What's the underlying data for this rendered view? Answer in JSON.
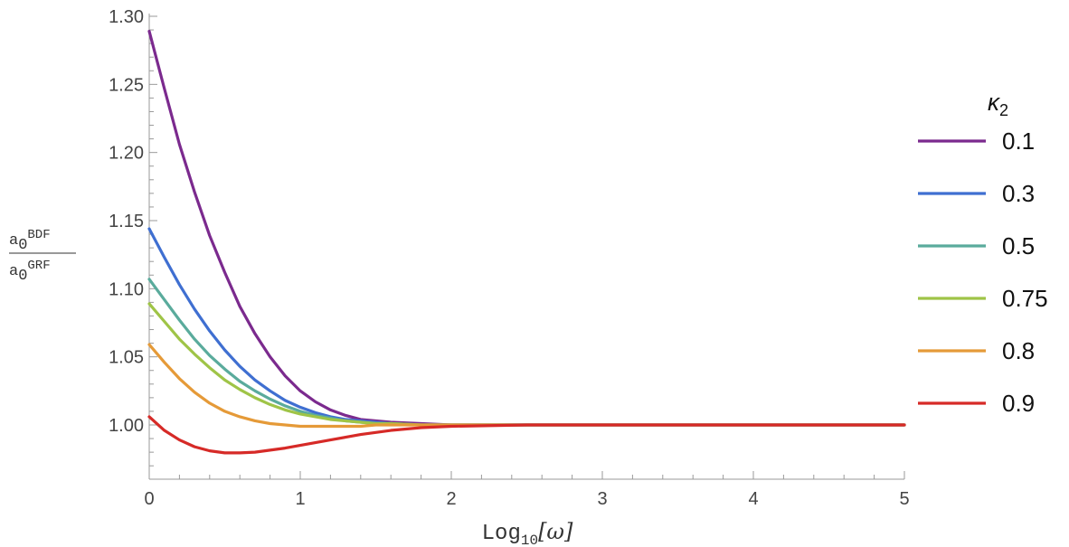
{
  "chart_data": {
    "type": "line",
    "xlabel": {
      "base": "Log",
      "sub": "10",
      "rest": "[ω]"
    },
    "ylabel": {
      "numerator": {
        "base": "a",
        "sub": "0",
        "sup": "BDF"
      },
      "denominator": {
        "base": "a",
        "sub": "0",
        "sup": "GRF"
      }
    },
    "xlim": [
      0,
      5
    ],
    "ylim": [
      0.97,
      1.3
    ],
    "x_ticks": [
      0,
      1,
      2,
      3,
      4,
      5
    ],
    "x_tick_labels": [
      "0",
      "1",
      "2",
      "3",
      "4",
      "5"
    ],
    "y_ticks": [
      1.0,
      1.05,
      1.1,
      1.15,
      1.2,
      1.25,
      1.3
    ],
    "y_tick_labels": [
      "1.00",
      "1.05",
      "1.10",
      "1.15",
      "1.20",
      "1.25",
      "1.30"
    ],
    "grid": false,
    "legend": {
      "title": {
        "base": "κ",
        "sub": "2"
      },
      "placement": "right"
    },
    "x": [
      0,
      0.1,
      0.2,
      0.3,
      0.4,
      0.5,
      0.6,
      0.7,
      0.8,
      0.9,
      1.0,
      1.1,
      1.2,
      1.3,
      1.4,
      1.5,
      1.6,
      1.8,
      2.0,
      2.5,
      3.0,
      3.5,
      4.0,
      4.5,
      5.0
    ],
    "series": [
      {
        "name": "0.1",
        "color": "#7b2a8e",
        "values": [
          1.289,
          1.247,
          1.206,
          1.171,
          1.139,
          1.112,
          1.087,
          1.067,
          1.05,
          1.036,
          1.025,
          1.017,
          1.011,
          1.007,
          1.004,
          1.003,
          1.002,
          1.001,
          1.0,
          1.0,
          1.0,
          1.0,
          1.0,
          1.0,
          1.0
        ]
      },
      {
        "name": "0.3",
        "color": "#3f6fd1",
        "values": [
          1.144,
          1.123,
          1.103,
          1.085,
          1.069,
          1.055,
          1.043,
          1.033,
          1.025,
          1.018,
          1.013,
          1.009,
          1.006,
          1.004,
          1.003,
          1.002,
          1.001,
          1.0,
          1.0,
          1.0,
          1.0,
          1.0,
          1.0,
          1.0,
          1.0
        ]
      },
      {
        "name": "0.5",
        "color": "#5aab9c",
        "values": [
          1.107,
          1.092,
          1.077,
          1.063,
          1.051,
          1.041,
          1.032,
          1.025,
          1.019,
          1.014,
          1.01,
          1.007,
          1.005,
          1.003,
          1.002,
          1.001,
          1.001,
          1.0,
          1.0,
          1.0,
          1.0,
          1.0,
          1.0,
          1.0,
          1.0
        ]
      },
      {
        "name": "0.75",
        "color": "#9fc447",
        "values": [
          1.089,
          1.076,
          1.063,
          1.052,
          1.042,
          1.033,
          1.026,
          1.02,
          1.015,
          1.011,
          1.008,
          1.006,
          1.004,
          1.003,
          1.002,
          1.001,
          1.001,
          1.0,
          1.0,
          1.0,
          1.0,
          1.0,
          1.0,
          1.0,
          1.0
        ]
      },
      {
        "name": "0.8",
        "color": "#e59a38",
        "values": [
          1.059,
          1.046,
          1.034,
          1.024,
          1.016,
          1.01,
          1.006,
          1.003,
          1.001,
          1.0,
          0.999,
          0.999,
          0.999,
          0.999,
          0.999,
          1.0,
          1.0,
          1.0,
          1.0,
          1.0,
          1.0,
          1.0,
          1.0,
          1.0,
          1.0
        ]
      },
      {
        "name": "0.9",
        "color": "#d62a27",
        "values": [
          1.006,
          0.996,
          0.989,
          0.984,
          0.981,
          0.9795,
          0.9795,
          0.98,
          0.9815,
          0.983,
          0.985,
          0.987,
          0.989,
          0.991,
          0.993,
          0.9945,
          0.996,
          0.998,
          0.999,
          1.0,
          1.0,
          1.0,
          1.0,
          1.0,
          1.0
        ]
      }
    ]
  }
}
